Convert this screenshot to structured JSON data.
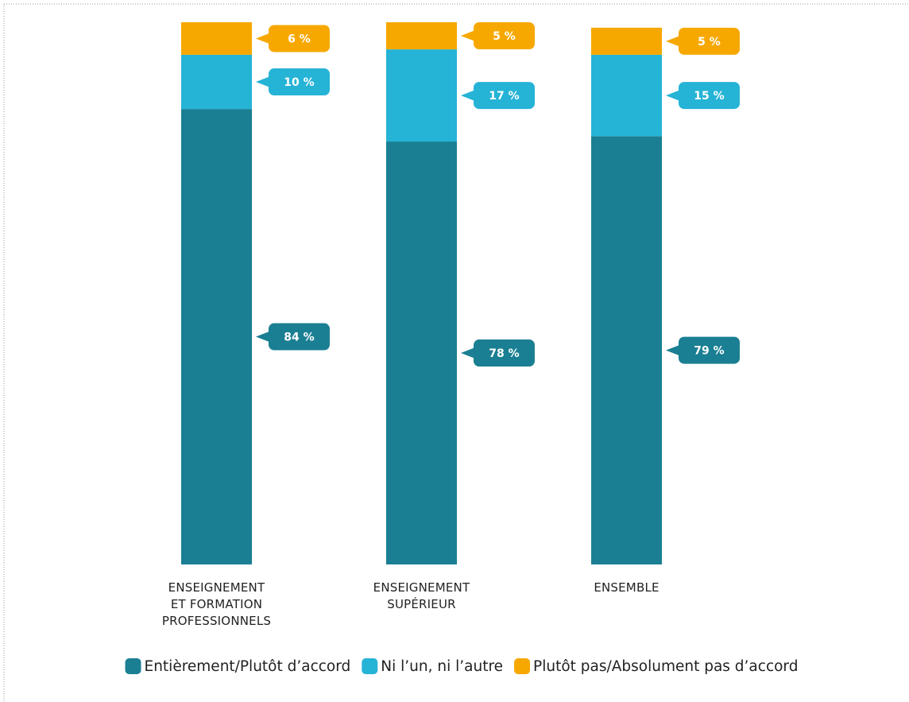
{
  "chart_data": {
    "type": "bar",
    "stacked": true,
    "categories": [
      "ENSEIGNEMENT\nET FORMATION\nPROFESSIONNELS",
      "ENSEIGNEMENT\nSUPÉRIEUR",
      "ENSEMBLE"
    ],
    "series": [
      {
        "name": "Entièrement/Plutôt d’accord",
        "color": "#1b7f93",
        "values": [
          84,
          78,
          79
        ],
        "value_labels": [
          "84 %",
          "78 %",
          "79 %"
        ]
      },
      {
        "name": "Ni l’un, ni l’autre",
        "color": "#25b3d6",
        "values": [
          10,
          17,
          15
        ],
        "value_labels": [
          "10 %",
          "17 %",
          "15 %"
        ]
      },
      {
        "name": "Plutôt pas/Absolument pas d’accord",
        "color": "#f6a800",
        "values": [
          6,
          5,
          5
        ],
        "value_labels": [
          "6 %",
          "5 %",
          "5 %"
        ]
      }
    ],
    "ylim": [
      0,
      100
    ],
    "legend": "bottom"
  }
}
